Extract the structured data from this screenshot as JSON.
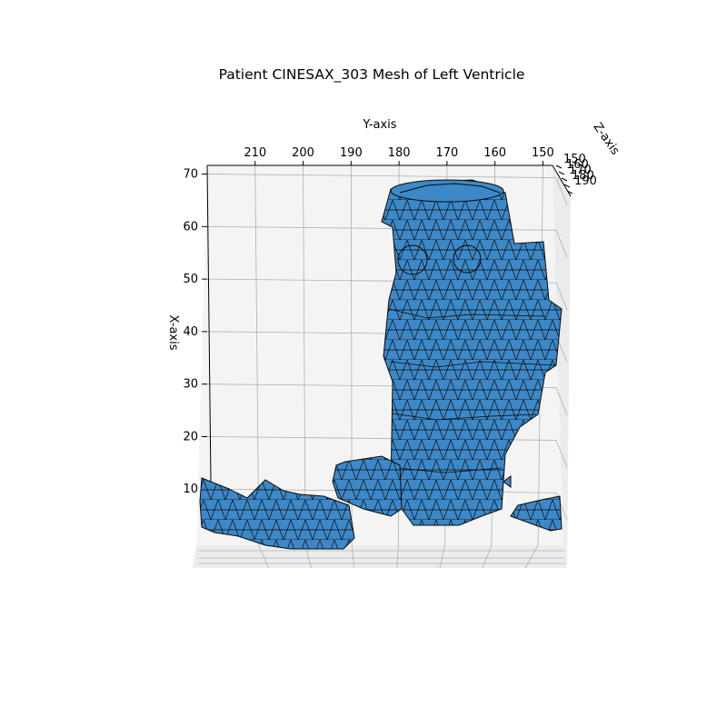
{
  "chart_data": {
    "type": "surface3d",
    "title": "Patient CINESAX_303 Mesh of Left Ventricle",
    "ylabel": "Y-axis",
    "xlabel": "X-axis",
    "zlabel": "Z-axis",
    "y_ticks": [
      "210",
      "200",
      "190",
      "180",
      "170",
      "160",
      "150"
    ],
    "x_ticks": [
      "70",
      "60",
      "50",
      "40",
      "30",
      "20",
      "10"
    ],
    "z_ticks": [
      "150",
      "160",
      "170",
      "180",
      "190"
    ],
    "y_range": [
      220,
      148
    ],
    "x_range": [
      0,
      72
    ],
    "grid": true,
    "colors": {
      "face": "#3c88c8",
      "face_dark": "#2f6fa6",
      "edge": "#0a0a0a",
      "pane": "#f2f2f2",
      "grid": "#b0b0b0"
    }
  }
}
